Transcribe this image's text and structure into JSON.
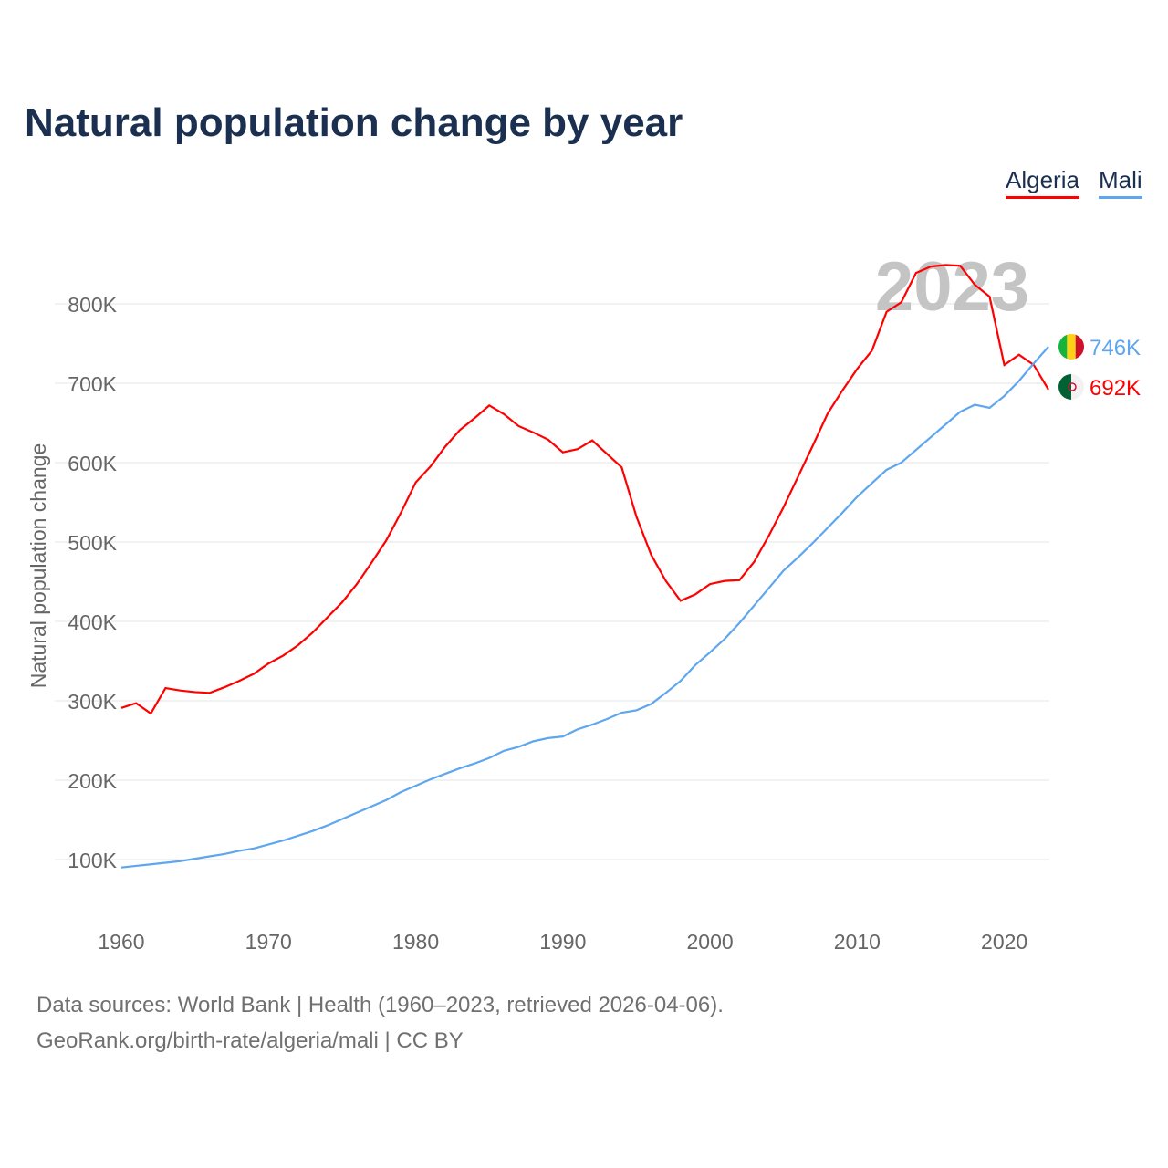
{
  "chart_data": {
    "type": "line",
    "title": "Natural population change by year",
    "ylabel": "Natural population change",
    "xlabel": "",
    "xlim": [
      1960,
      2023
    ],
    "ylim": [
      0,
      900000
    ],
    "x_ticks": [
      1960,
      1970,
      1980,
      1990,
      2000,
      2010,
      2020
    ],
    "y_ticks": [
      100000,
      200000,
      300000,
      400000,
      500000,
      600000,
      700000,
      800000
    ],
    "y_tick_labels": [
      "100K",
      "200K",
      "300K",
      "400K",
      "500K",
      "600K",
      "700K",
      "800K"
    ],
    "year_label": "2023",
    "legend_position": "top-right",
    "series": [
      {
        "name": "Algeria",
        "color": "#ff0000",
        "end_label": "692K",
        "flag": "algeria-flag",
        "values": [
          291,
          297,
          284,
          316,
          313,
          311,
          310,
          317,
          325,
          334,
          347,
          357,
          370,
          386,
          405,
          424,
          447,
          474,
          502,
          537,
          575,
          595,
          620,
          641,
          656,
          672,
          661,
          646,
          638,
          629,
          613,
          617,
          628,
          611,
          594,
          532,
          484,
          451,
          426,
          434,
          447,
          451,
          452,
          475,
          508,
          544,
          583,
          622,
          662,
          691,
          718,
          741,
          790,
          802,
          839,
          847,
          849,
          848,
          824,
          809,
          723,
          736,
          723,
          692
        ]
      },
      {
        "name": "Mali",
        "color": "#5ea6f0",
        "end_label": "746K",
        "flag": "mali-flag",
        "values": [
          90,
          92,
          94,
          96,
          98,
          101,
          104,
          107,
          111,
          114,
          119,
          124,
          130,
          136,
          143,
          151,
          159,
          167,
          175,
          185,
          193,
          201,
          208,
          215,
          221,
          228,
          237,
          242,
          249,
          253,
          255,
          264,
          270,
          277,
          285,
          288,
          296,
          310,
          325,
          345,
          361,
          378,
          398,
          420,
          442,
          464,
          481,
          499,
          518,
          537,
          557,
          574,
          591,
          600,
          616,
          632,
          648,
          664,
          673,
          669,
          684,
          703,
          725,
          746
        ]
      }
    ],
    "value_unit": "thousands"
  },
  "footer": {
    "line1": "Data sources: World Bank | Health (1960–2023, retrieved 2026-04-06).",
    "line2": "GeoRank.org/birth-rate/algeria/mali | CC BY"
  }
}
